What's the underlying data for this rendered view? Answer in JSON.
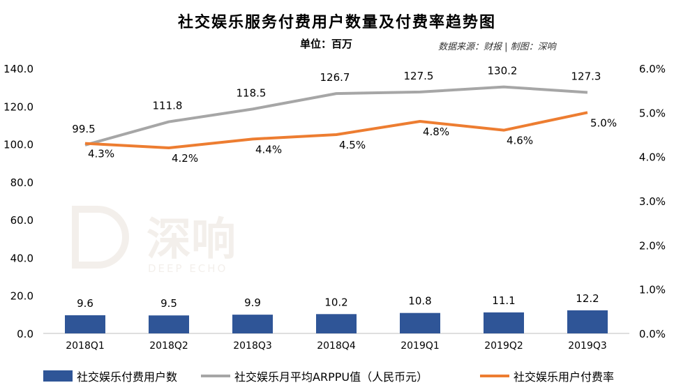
{
  "title": "社交娱乐服务付费用户数量及付费率趋势图",
  "unit": "单位：百万",
  "source": "数据来源：财报 | 制图：深响",
  "watermark": {
    "cn": "深响",
    "en": "DEEP ECHO"
  },
  "colors": {
    "bar": "#2f5597",
    "arppu": "#a6a6a6",
    "rate": "#ed7d31"
  },
  "chart_data": {
    "type": "bar",
    "categories": [
      "2018Q1",
      "2018Q2",
      "2018Q3",
      "2018Q4",
      "2019Q1",
      "2019Q2",
      "2019Q3"
    ],
    "series": [
      {
        "name": "社交娱乐付费用户数",
        "type": "bar",
        "axis": "left",
        "values": [
          9.6,
          9.5,
          9.9,
          10.2,
          10.8,
          11.1,
          12.2
        ],
        "labels": [
          "9.6",
          "9.5",
          "9.9",
          "10.2",
          "10.8",
          "11.1",
          "12.2"
        ]
      },
      {
        "name": "社交娱乐月平均ARPPU值（人民币元）",
        "type": "line",
        "axis": "left",
        "values": [
          99.5,
          111.8,
          118.5,
          126.7,
          127.5,
          130.2,
          127.3
        ],
        "labels": [
          "99.5",
          "111.8",
          "118.5",
          "126.7",
          "127.5",
          "130.2",
          "127.3"
        ]
      },
      {
        "name": "社交娱乐用户付费率",
        "type": "line",
        "axis": "right",
        "values": [
          4.3,
          4.2,
          4.4,
          4.5,
          4.8,
          4.6,
          5.0
        ],
        "labels": [
          "4.3%",
          "4.2%",
          "4.4%",
          "4.5%",
          "4.8%",
          "4.6%",
          "5.0%"
        ]
      }
    ],
    "y_left": {
      "min": 0,
      "max": 140,
      "ticks": [
        "0.0",
        "20.0",
        "40.0",
        "60.0",
        "80.0",
        "100.0",
        "120.0",
        "140.0"
      ]
    },
    "y_right": {
      "min": 0,
      "max": 6,
      "ticks": [
        "0.0%",
        "1.0%",
        "2.0%",
        "3.0%",
        "4.0%",
        "5.0%",
        "6.0%"
      ]
    },
    "legend_position": "bottom",
    "grid": false
  }
}
